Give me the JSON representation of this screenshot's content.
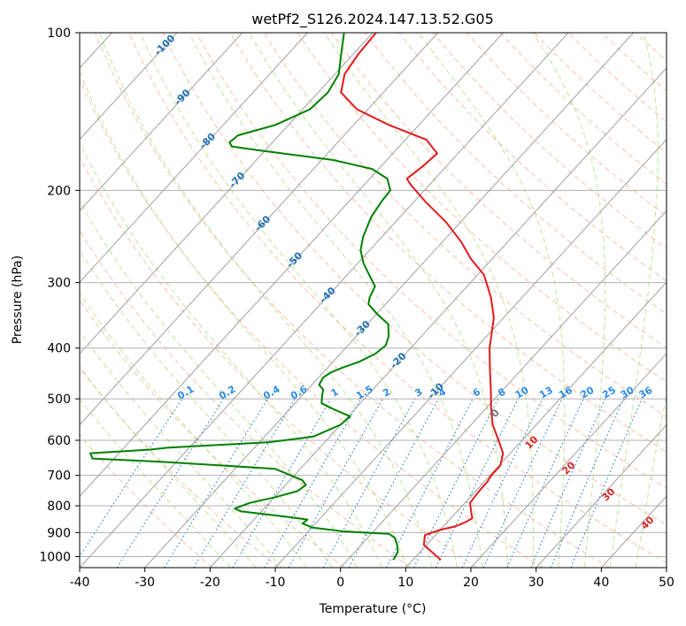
{
  "chart_data": {
    "type": "line",
    "title": "wetPf2_S126.2024.147.13.52.G05",
    "xlabel": "Temperature (°C)",
    "ylabel": "Pressure (hPa)",
    "xlim": [
      -40,
      50
    ],
    "ylim": [
      1050,
      100
    ],
    "y_scale": "log",
    "grid": true,
    "x_ticks": [
      -40,
      -30,
      -20,
      -10,
      0,
      10,
      20,
      30,
      40,
      50
    ],
    "y_ticks": [
      100,
      200,
      300,
      400,
      500,
      600,
      700,
      800,
      900,
      1000
    ],
    "isotherm_labels": [
      "-100",
      "-90",
      "-80",
      "-70",
      "-60",
      "-50",
      "-40",
      "-30",
      "-20",
      "-10",
      "0",
      "10",
      "20",
      "30",
      "40"
    ],
    "mixing_ratio_labels": [
      "0.1",
      "0.2",
      "0.4",
      "0.6",
      "1",
      "1.5",
      "2",
      "3",
      "4",
      "6",
      "8",
      "10",
      "13",
      "16",
      "20",
      "25",
      "30",
      "36"
    ],
    "series": [
      {
        "role": "temperature",
        "color": "#e41a1c",
        "points": [
          [
            14.3,
            1015
          ],
          [
            9.6,
            950
          ],
          [
            8.4,
            910
          ],
          [
            9.9,
            890
          ],
          [
            11.8,
            876
          ],
          [
            12.8,
            860
          ],
          [
            13.3,
            845
          ],
          [
            12.6,
            830
          ],
          [
            11.7,
            810
          ],
          [
            10.8,
            790
          ],
          [
            10.6,
            760
          ],
          [
            10.5,
            740
          ],
          [
            10.5,
            720
          ],
          [
            10.2,
            700
          ],
          [
            10.2,
            670
          ],
          [
            8.9,
            635
          ],
          [
            6.4,
            600
          ],
          [
            3.3,
            560
          ],
          [
            0.7,
            520
          ],
          [
            -1.9,
            480
          ],
          [
            -4.8,
            440
          ],
          [
            -7.9,
            400
          ],
          [
            -11.5,
            350
          ],
          [
            -14.8,
            320
          ],
          [
            -19.0,
            290
          ],
          [
            -23.3,
            270
          ],
          [
            -27.3,
            250
          ],
          [
            -32.2,
            230
          ],
          [
            -38.3,
            210
          ],
          [
            -42.9,
            195
          ],
          [
            -44.3,
            190
          ],
          [
            -43.6,
            180
          ],
          [
            -43.2,
            170
          ],
          [
            -46.8,
            160
          ],
          [
            -54.6,
            150
          ],
          [
            -61.7,
            140
          ],
          [
            -66.5,
            130
          ],
          [
            -68.5,
            120
          ],
          [
            -69.2,
            110
          ],
          [
            -69.5,
            100
          ]
        ]
      },
      {
        "role": "dewpoint",
        "color": "#008000",
        "points": [
          [
            7.0,
            1015
          ],
          [
            6.6,
            980
          ],
          [
            5.5,
            950
          ],
          [
            4.1,
            920
          ],
          [
            2.7,
            905
          ],
          [
            0.1,
            902
          ],
          [
            -4.8,
            895
          ],
          [
            -10.0,
            880
          ],
          [
            -12.0,
            865
          ],
          [
            -11.8,
            850
          ],
          [
            -15.2,
            840
          ],
          [
            -23.1,
            820
          ],
          [
            -24.5,
            810
          ],
          [
            -23.0,
            790
          ],
          [
            -19.8,
            770
          ],
          [
            -17.3,
            750
          ],
          [
            -16.9,
            730
          ],
          [
            -18.1,
            715
          ],
          [
            -23.9,
            680
          ],
          [
            -41.7,
            660
          ],
          [
            -53.3,
            650
          ],
          [
            -54.4,
            635
          ],
          [
            -45.7,
            625
          ],
          [
            -43.4,
            620
          ],
          [
            -28.5,
            605
          ],
          [
            -22.5,
            590
          ],
          [
            -20.0,
            560
          ],
          [
            -19.7,
            540
          ],
          [
            -22.9,
            525
          ],
          [
            -25.9,
            510
          ],
          [
            -26.8,
            495
          ],
          [
            -27.6,
            480
          ],
          [
            -28.9,
            470
          ],
          [
            -29.3,
            455
          ],
          [
            -28.8,
            445
          ],
          [
            -27.6,
            435
          ],
          [
            -26.0,
            425
          ],
          [
            -24.6,
            410
          ],
          [
            -24.2,
            395
          ],
          [
            -25.0,
            380
          ],
          [
            -26.8,
            360
          ],
          [
            -29.8,
            345
          ],
          [
            -32.6,
            330
          ],
          [
            -33.4,
            320
          ],
          [
            -34.1,
            305
          ],
          [
            -36.6,
            290
          ],
          [
            -39.2,
            275
          ],
          [
            -41.4,
            260
          ],
          [
            -42.9,
            245
          ],
          [
            -44.4,
            225
          ],
          [
            -45.0,
            210
          ],
          [
            -45.2,
            200
          ],
          [
            -47.3,
            190
          ],
          [
            -51.0,
            182
          ],
          [
            -58.2,
            175
          ],
          [
            -70.4,
            168
          ],
          [
            -75.6,
            165
          ],
          [
            -76.6,
            162
          ],
          [
            -76.3,
            157
          ],
          [
            -72.0,
            150
          ],
          [
            -68.9,
            140
          ],
          [
            -68.5,
            130
          ],
          [
            -69.4,
            120
          ],
          [
            -71.8,
            110
          ],
          [
            -74.4,
            100
          ]
        ]
      }
    ]
  }
}
